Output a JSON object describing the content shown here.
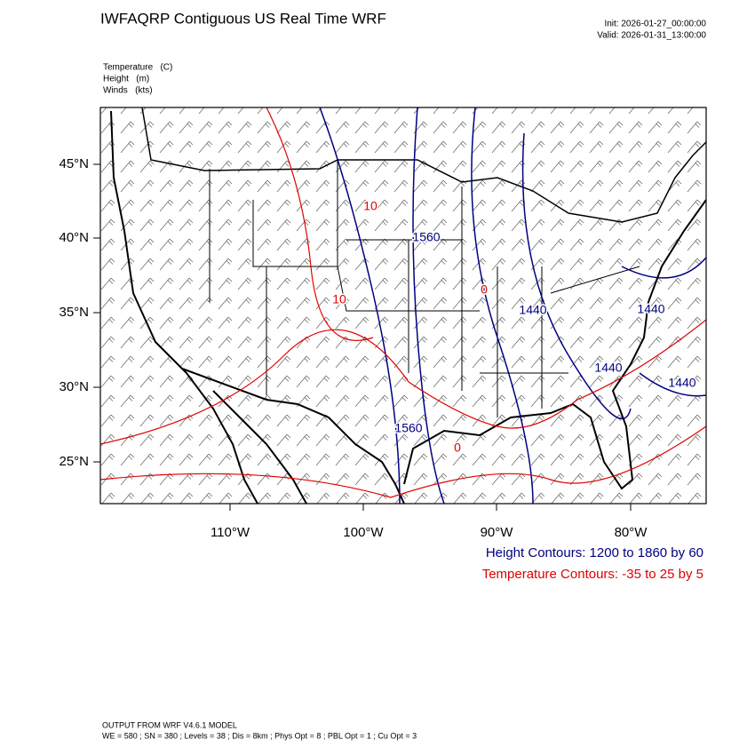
{
  "header": {
    "title": "IWFAQRP Contiguous US Real Time WRF",
    "init": "Init: 2026-01-27_00:00:00",
    "valid": "Valid: 2026-01-31_13:00:00"
  },
  "fields": [
    "Temperature   (C)",
    "Height   (m)",
    "Winds   (kts)"
  ],
  "map": {
    "lat_labels": [
      "45°N",
      "40°N",
      "35°N",
      "30°N",
      "25°N"
    ],
    "lon_labels": [
      "110°W",
      "100°W",
      "90°W",
      "80°W"
    ],
    "height_labels": [
      "1560",
      "1440",
      "1440",
      "1440",
      "1440",
      "1560"
    ],
    "temp_labels": [
      "10",
      "10",
      "0",
      "0"
    ]
  },
  "contours": {
    "height": "Height Contours: 1200 to 1860 by 60",
    "temperature": "Temperature Contours: -35 to 25 by 5"
  },
  "footer": {
    "model": "OUTPUT FROM WRF V4.6.1 MODEL",
    "settings": "WE = 580 ; SN = 380 ; Levels = 38 ; Dis = 8km ; Phys Opt = 8 ; PBL Opt = 1 ; Cu Opt = 3"
  }
}
